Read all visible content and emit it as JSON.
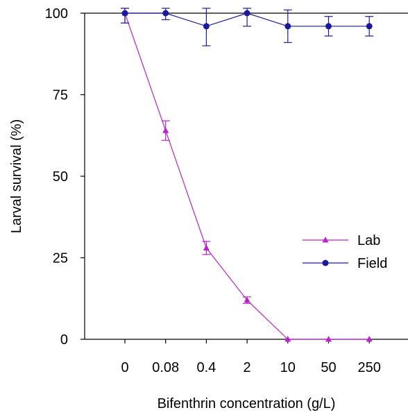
{
  "chart_data": {
    "type": "line",
    "xlabel": "Bifenthrin concentration (g/L)",
    "ylabel": "Larval survival (%)",
    "categories": [
      "0",
      "0.08",
      "0.4",
      "2",
      "10",
      "50",
      "250"
    ],
    "ylim": [
      0,
      100
    ],
    "yticks": [
      "0",
      "25",
      "50",
      "75",
      "100"
    ],
    "grid": false,
    "legend_position": "right",
    "series": [
      {
        "name": "Lab",
        "marker": "triangle",
        "color": "#bb22cc",
        "values": [
          100,
          64,
          28,
          12,
          0,
          0,
          0
        ],
        "errors": [
          3,
          3,
          2,
          1,
          0,
          0,
          0
        ]
      },
      {
        "name": "Field",
        "marker": "circle",
        "color": "#1a1a9e",
        "values": [
          100,
          100,
          96,
          100,
          96,
          96,
          96
        ],
        "errors": [
          3,
          2,
          6,
          4,
          5,
          3,
          3
        ]
      }
    ]
  }
}
